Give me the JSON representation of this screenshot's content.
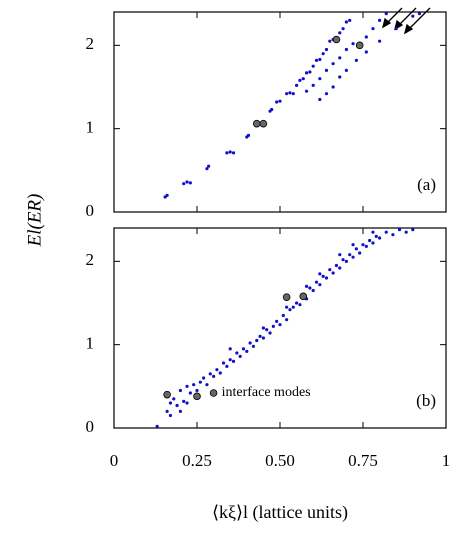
{
  "chart_data": [
    {
      "type": "scatter",
      "annotation": "(a)",
      "ylabel": "El(ER)",
      "xlim": [
        0,
        1
      ],
      "xticks": [
        0,
        0.25,
        {
          "value": 0.5,
          "label": "0.50"
        },
        0.75,
        1
      ],
      "ylim": [
        0,
        2.4
      ],
      "yticks": [
        0,
        1,
        2
      ],
      "series": [
        {
          "color": "#1010c8",
          "marker": "dot",
          "x": [
            0.154,
            0.16,
            0.21,
            0.22,
            0.23,
            0.28,
            0.285,
            0.34,
            0.35,
            0.36,
            0.4,
            0.405,
            0.43,
            0.44,
            0.45,
            0.47,
            0.475,
            0.49,
            0.5,
            0.52,
            0.53,
            0.54,
            0.55,
            0.56,
            0.57,
            0.58,
            0.59,
            0.6,
            0.61,
            0.62,
            0.63,
            0.64,
            0.65,
            0.66,
            0.67,
            0.68,
            0.69,
            0.7,
            0.71,
            0.58,
            0.6,
            0.62,
            0.64,
            0.66,
            0.68,
            0.7,
            0.72,
            0.74,
            0.76,
            0.78,
            0.8,
            0.82,
            0.62,
            0.64,
            0.66,
            0.68,
            0.7,
            0.73,
            0.76,
            0.8,
            0.85,
            0.9,
            0.92
          ],
          "values": [
            0.18,
            0.2,
            0.34,
            0.36,
            0.35,
            0.52,
            0.55,
            0.71,
            0.72,
            0.71,
            0.9,
            0.92,
            1.05,
            1.06,
            1.05,
            1.21,
            1.23,
            1.32,
            1.33,
            1.42,
            1.43,
            1.42,
            1.52,
            1.58,
            1.6,
            1.67,
            1.68,
            1.75,
            1.82,
            1.83,
            1.9,
            1.95,
            2.05,
            2.07,
            2.07,
            2.15,
            2.2,
            2.28,
            2.3,
            1.45,
            1.52,
            1.6,
            1.7,
            1.78,
            1.85,
            1.95,
            2.02,
            2.0,
            2.1,
            2.2,
            2.3,
            2.38,
            1.35,
            1.42,
            1.5,
            1.62,
            1.7,
            1.82,
            1.92,
            2.05,
            2.2,
            2.35,
            2.38
          ]
        },
        {
          "color": "#666666",
          "marker": "circle",
          "x": [
            0.43,
            0.45,
            0.67,
            0.74
          ],
          "values": [
            1.06,
            1.06,
            2.07,
            2.0
          ]
        }
      ]
    },
    {
      "type": "scatter",
      "annotation": "(b)",
      "note": "interface modes",
      "xlabel": "⟨kξ⟩l (lattice units)",
      "xlim": [
        0,
        1
      ],
      "xticks": [
        0,
        0.25,
        {
          "value": 0.5,
          "label": "0.50"
        },
        0.75,
        1
      ],
      "ylim": [
        0,
        2.4
      ],
      "yticks": [
        0,
        1,
        2
      ],
      "series": [
        {
          "color": "#1010c8",
          "marker": "dot",
          "x": [
            0.16,
            0.17,
            0.18,
            0.19,
            0.2,
            0.21,
            0.22,
            0.23,
            0.24,
            0.25,
            0.26,
            0.27,
            0.28,
            0.29,
            0.3,
            0.31,
            0.32,
            0.33,
            0.34,
            0.35,
            0.36,
            0.37,
            0.38,
            0.39,
            0.4,
            0.41,
            0.42,
            0.43,
            0.44,
            0.45,
            0.46,
            0.47,
            0.48,
            0.49,
            0.5,
            0.51,
            0.52,
            0.53,
            0.54,
            0.55,
            0.56,
            0.57,
            0.58,
            0.59,
            0.6,
            0.61,
            0.62,
            0.63,
            0.64,
            0.65,
            0.66,
            0.67,
            0.68,
            0.69,
            0.7,
            0.71,
            0.72,
            0.73,
            0.74,
            0.75,
            0.76,
            0.77,
            0.78,
            0.79,
            0.8,
            0.82,
            0.84,
            0.86,
            0.88,
            0.9,
            0.13,
            0.17,
            0.2,
            0.22,
            0.35,
            0.45,
            0.52,
            0.58,
            0.62,
            0.68,
            0.72,
            0.78
          ],
          "values": [
            0.2,
            0.3,
            0.35,
            0.27,
            0.45,
            0.32,
            0.5,
            0.42,
            0.52,
            0.45,
            0.55,
            0.6,
            0.52,
            0.65,
            0.62,
            0.7,
            0.66,
            0.78,
            0.74,
            0.82,
            0.8,
            0.9,
            0.86,
            0.95,
            0.92,
            1.02,
            0.98,
            1.05,
            1.1,
            1.08,
            1.18,
            1.14,
            1.22,
            1.28,
            1.24,
            1.35,
            1.3,
            1.42,
            1.45,
            1.5,
            1.48,
            1.6,
            1.55,
            1.68,
            1.65,
            1.75,
            1.72,
            1.82,
            1.8,
            1.9,
            1.86,
            1.95,
            1.92,
            2.02,
            2.0,
            2.08,
            2.05,
            2.15,
            2.1,
            2.2,
            2.18,
            2.25,
            2.22,
            2.3,
            2.28,
            2.35,
            2.32,
            2.38,
            2.35,
            2.38,
            0.02,
            0.15,
            0.2,
            0.3,
            0.95,
            1.2,
            1.45,
            1.7,
            1.85,
            2.08,
            2.2,
            2.35
          ]
        },
        {
          "color": "#666666",
          "marker": "circle",
          "x": [
            0.16,
            0.25,
            0.3,
            0.52,
            0.57
          ],
          "values": [
            0.4,
            0.38,
            0.42,
            1.57,
            1.58
          ]
        }
      ]
    }
  ]
}
